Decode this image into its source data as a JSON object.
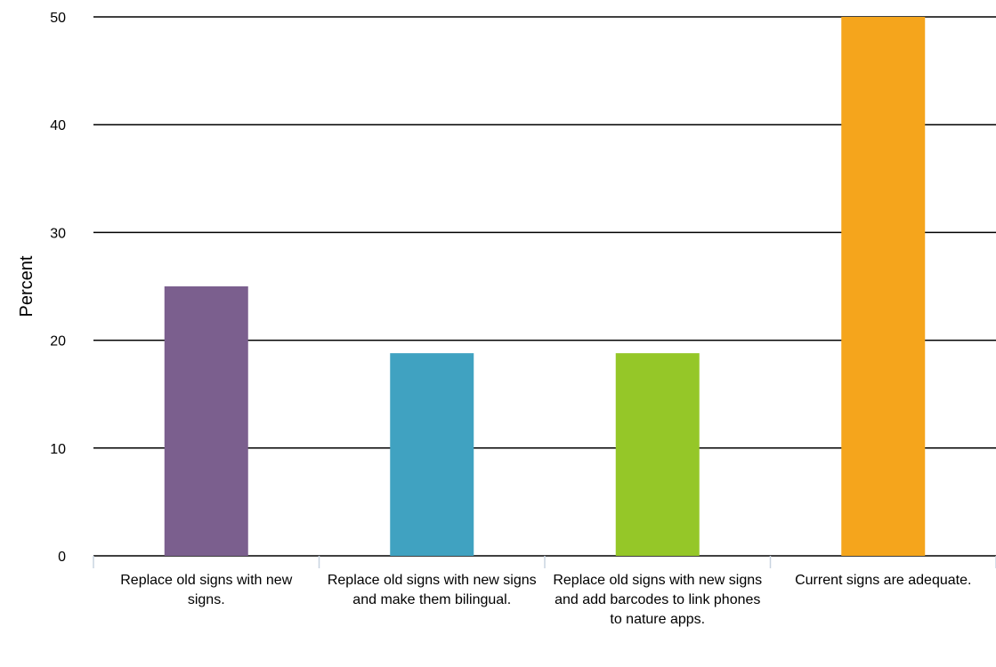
{
  "chart_data": {
    "type": "bar",
    "categories": [
      "Replace old signs with new signs.",
      "Replace old signs with new signs and make them bilingual.",
      "Replace old signs with new signs and add barcodes to link phones to nature apps.",
      "Current signs are adequate."
    ],
    "values": [
      25,
      18.8,
      18.8,
      50
    ],
    "colors": [
      "#7b5f8e",
      "#40a2c1",
      "#95c728",
      "#f5a51c"
    ],
    "title": "",
    "xlabel": "",
    "ylabel": "Percent",
    "ylim": [
      0,
      50
    ],
    "yticks": [
      0,
      10,
      20,
      30,
      40,
      50
    ],
    "grid": true,
    "legend": "none"
  }
}
